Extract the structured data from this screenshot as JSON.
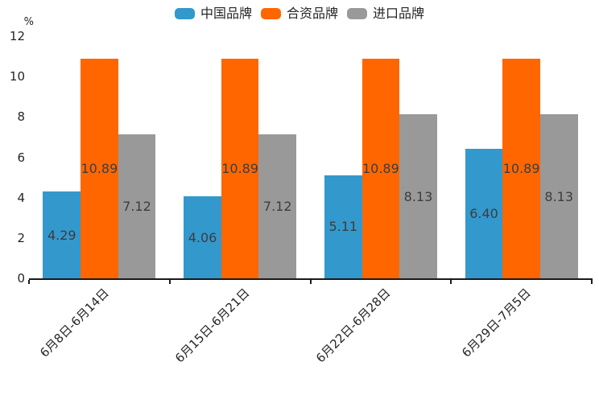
{
  "chart_data": {
    "type": "bar",
    "title": "",
    "unit_label": "%",
    "xlabel": "",
    "ylabel": "%",
    "categories": [
      "6月8日-6月14日",
      "6月15日-6月21日",
      "6月22日-6月28日",
      "6月29日-7月5日"
    ],
    "series": [
      {
        "name": "中国品牌",
        "slug": "china-brand",
        "color": "#3398cc",
        "values": [
          4.29,
          4.06,
          5.11,
          6.4
        ]
      },
      {
        "name": "合资品牌",
        "slug": "joint-venture-brand",
        "color": "#ff6600",
        "values": [
          10.89,
          10.89,
          10.89,
          10.89
        ]
      },
      {
        "name": "进口品牌",
        "slug": "import-brand",
        "color": "#999999",
        "values": [
          7.12,
          7.12,
          8.13,
          8.13
        ]
      }
    ],
    "ylim": [
      0,
      12
    ],
    "yticks": [
      0,
      2,
      4,
      6,
      8,
      10,
      12
    ],
    "value_labels_shown": true,
    "value_label_decimals": 2,
    "legend_position": "top-center",
    "grid": false,
    "background_color": "#ffffff",
    "axis_color": "#1a1a1a",
    "label_color": "#252525",
    "value_label_color": "#3d3d3d"
  }
}
